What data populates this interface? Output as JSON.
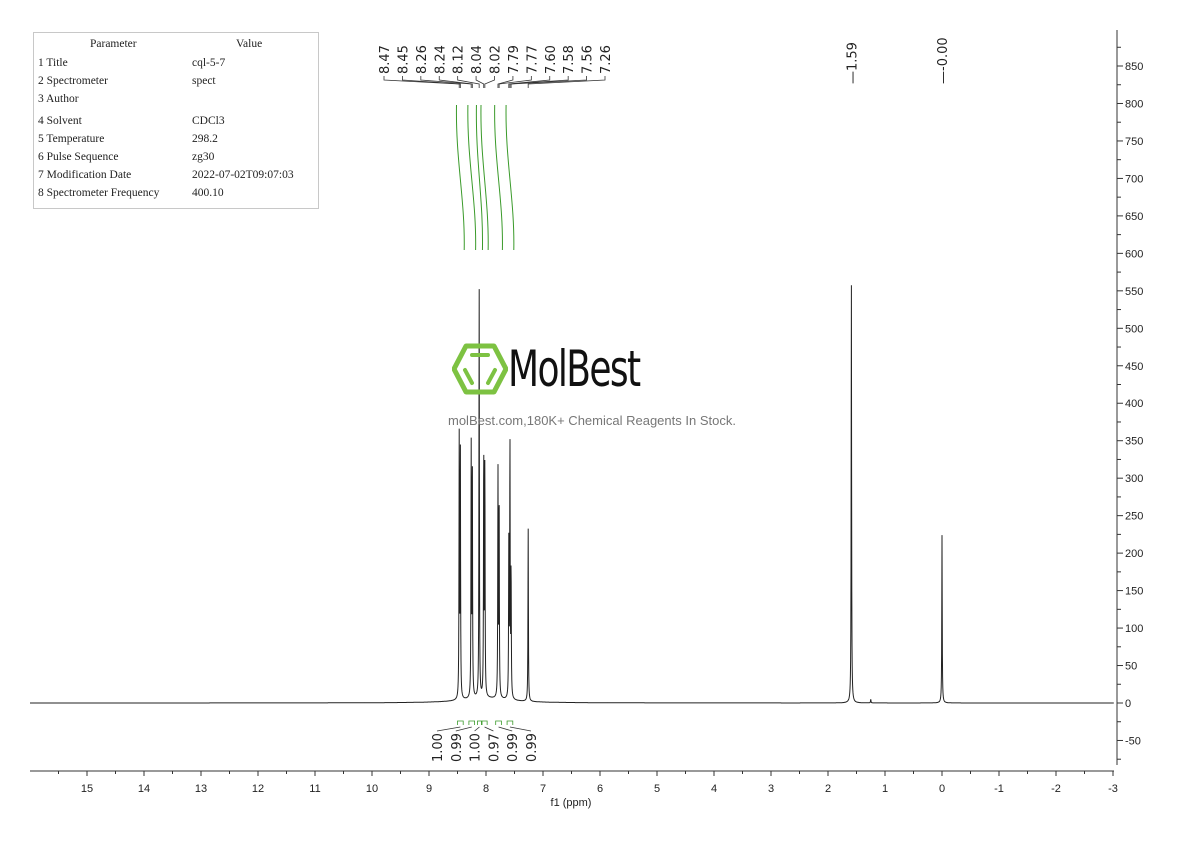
{
  "parameters": {
    "header": {
      "parameter": "Parameter",
      "value": "Value"
    },
    "rows": [
      {
        "name": "1 Title",
        "value": "cql-5-7"
      },
      {
        "name": "2 Spectrometer",
        "value": "spect"
      },
      {
        "name": "3 Author",
        "value": ""
      },
      {
        "name": "4 Solvent",
        "value": "CDCl3"
      },
      {
        "name": "5 Temperature",
        "value": "298.2"
      },
      {
        "name": "6 Pulse Sequence",
        "value": "zg30"
      },
      {
        "name": "7 Modification Date",
        "value": "2022-07-02T09:07:03"
      },
      {
        "name": "8 Spectrometer Frequency",
        "value": "400.10"
      }
    ]
  },
  "watermark": {
    "brand": "MolBest",
    "tagline": "molBest.com,180K+ Chemical Reagents In Stock.",
    "color": "#7dc242"
  },
  "chart_data": {
    "type": "line",
    "title": "",
    "xlabel": "f1 (ppm)",
    "ylabel": "",
    "xlim": [
      16,
      -3
    ],
    "ylim": [
      -85,
      900
    ],
    "x_reversed": true,
    "x_ticks": [
      15,
      14,
      13,
      12,
      11,
      10,
      9,
      8,
      7,
      6,
      5,
      4,
      3,
      2,
      1,
      0,
      -1,
      -2,
      -3
    ],
    "x_tick_labels": [
      "15",
      "14",
      "13",
      "12",
      "11",
      "10",
      "9",
      "8",
      "7",
      "6",
      "5",
      "4",
      "3",
      "2",
      "1",
      "0",
      "-1",
      "-2",
      "-3"
    ],
    "y_ticks": [
      850,
      800,
      750,
      700,
      650,
      600,
      550,
      500,
      450,
      400,
      350,
      300,
      250,
      200,
      150,
      100,
      50,
      0,
      -50
    ],
    "y_tick_labels": [
      "850",
      "800",
      "750",
      "700",
      "650",
      "600",
      "550",
      "500",
      "450",
      "400",
      "350",
      "300",
      "250",
      "200",
      "150",
      "100",
      "50",
      "0",
      "-50"
    ],
    "y_axis_side": "right",
    "grid": false,
    "line_color": "#222222",
    "integral_color": "#3a9a2a",
    "peaks": [
      {
        "ppm": 8.47,
        "height": 347
      },
      {
        "ppm": 8.45,
        "height": 338
      },
      {
        "ppm": 8.26,
        "height": 334
      },
      {
        "ppm": 8.24,
        "height": 324
      },
      {
        "ppm": 8.12,
        "height": 557
      },
      {
        "ppm": 8.04,
        "height": 335
      },
      {
        "ppm": 8.02,
        "height": 315
      },
      {
        "ppm": 7.79,
        "height": 303
      },
      {
        "ppm": 7.77,
        "height": 276
      },
      {
        "ppm": 7.6,
        "height": 204
      },
      {
        "ppm": 7.58,
        "height": 348
      },
      {
        "ppm": 7.56,
        "height": 173
      },
      {
        "ppm": 7.26,
        "height": 232
      },
      {
        "ppm": 1.59,
        "height": 565
      },
      {
        "ppm": 1.25,
        "height": 5
      },
      {
        "ppm": 0.0,
        "height": 224
      }
    ],
    "peak_labels": [
      "8.47",
      "8.45",
      "8.26",
      "8.24",
      "8.12",
      "8.04",
      "8.02",
      "7.79",
      "7.77",
      "7.60",
      "7.58",
      "7.56",
      "7.26"
    ],
    "isolated_peak_labels": [
      "1.59",
      "-0.00"
    ],
    "integrals": [
      {
        "from": 8.5,
        "to": 8.4,
        "value": "1.00"
      },
      {
        "from": 8.3,
        "to": 8.2,
        "value": "0.99"
      },
      {
        "from": 8.15,
        "to": 8.08,
        "value": "1.00"
      },
      {
        "from": 8.07,
        "to": 7.98,
        "value": "0.97"
      },
      {
        "from": 7.83,
        "to": 7.73,
        "value": "0.99"
      },
      {
        "from": 7.63,
        "to": 7.53,
        "value": "0.99"
      }
    ]
  }
}
